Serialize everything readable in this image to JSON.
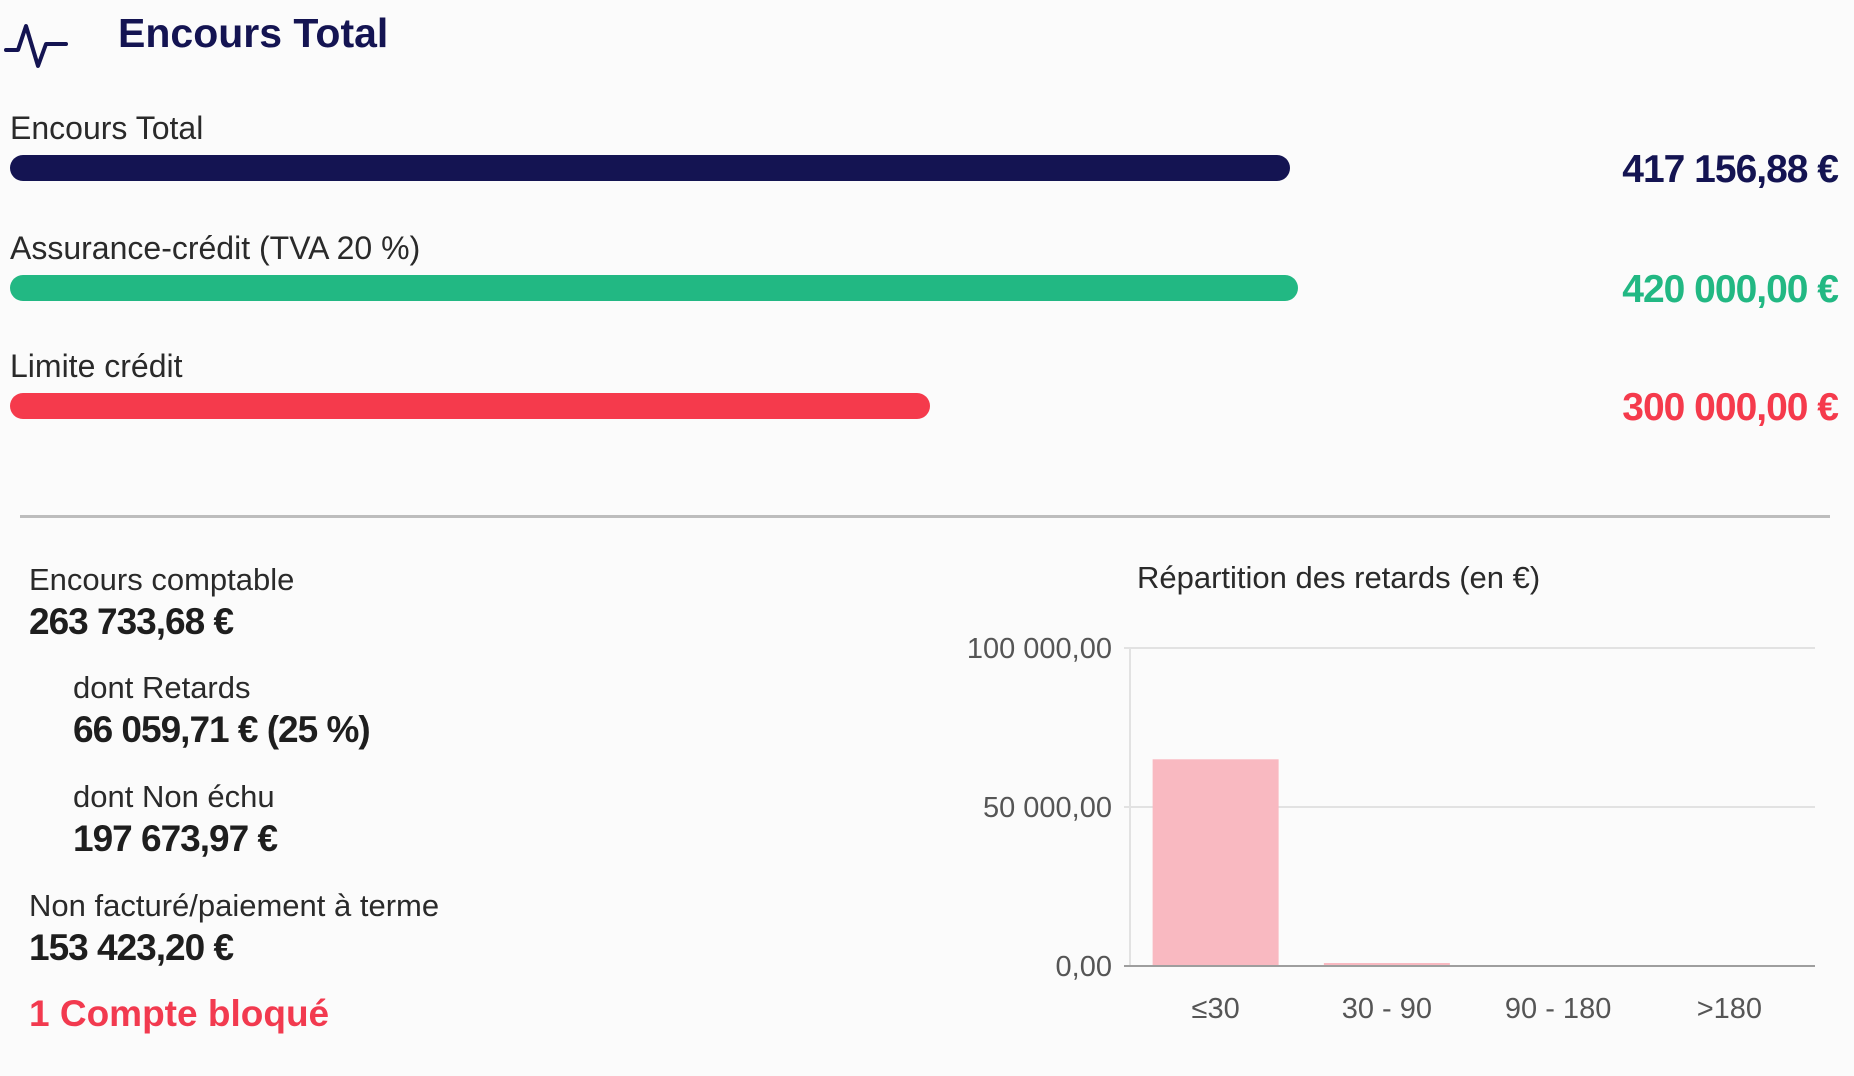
{
  "header": {
    "title": "Encours Total",
    "icon": "activity-pulse-icon"
  },
  "metrics": [
    {
      "key": "encours",
      "label": "Encours Total",
      "amount": "417 156,88 €",
      "color": "#141452",
      "value": 417156.88
    },
    {
      "key": "assurance",
      "label": "Assurance-crédit (TVA 20 %)",
      "amount": "420 000,00 €",
      "color": "#22b883",
      "value": 420000.0
    },
    {
      "key": "limite",
      "label": "Limite crédit",
      "amount": "300 000,00 €",
      "color": "#f53a4c",
      "value": 300000.0
    }
  ],
  "stats": {
    "encours_comptable": {
      "label": "Encours comptable",
      "value": "263 733,68 €"
    },
    "retards": {
      "label": "dont Retards",
      "value": "66 059,71 € (25 %)"
    },
    "non_echu": {
      "label": "dont Non échu",
      "value": "197 673,97 €"
    },
    "non_facture": {
      "label": "Non facturé/paiement à terme",
      "value": "153 423,20 €"
    },
    "blocked": "1 Compte bloqué"
  },
  "chart_title": "Répartition des retards (en €)",
  "chart_data": {
    "type": "bar",
    "title": "Répartition des retards (en €)",
    "categories": [
      "≤30",
      "30 - 90",
      "90 - 180",
      ">180"
    ],
    "values": [
      65000,
      700,
      0,
      0
    ],
    "ylim": [
      0,
      100000
    ],
    "yticks": [
      0,
      50000,
      100000
    ],
    "ytick_labels": [
      "0,00",
      "50 000,00",
      "100 000,00"
    ],
    "bar_color": "#f9b9c1",
    "grid": true
  }
}
